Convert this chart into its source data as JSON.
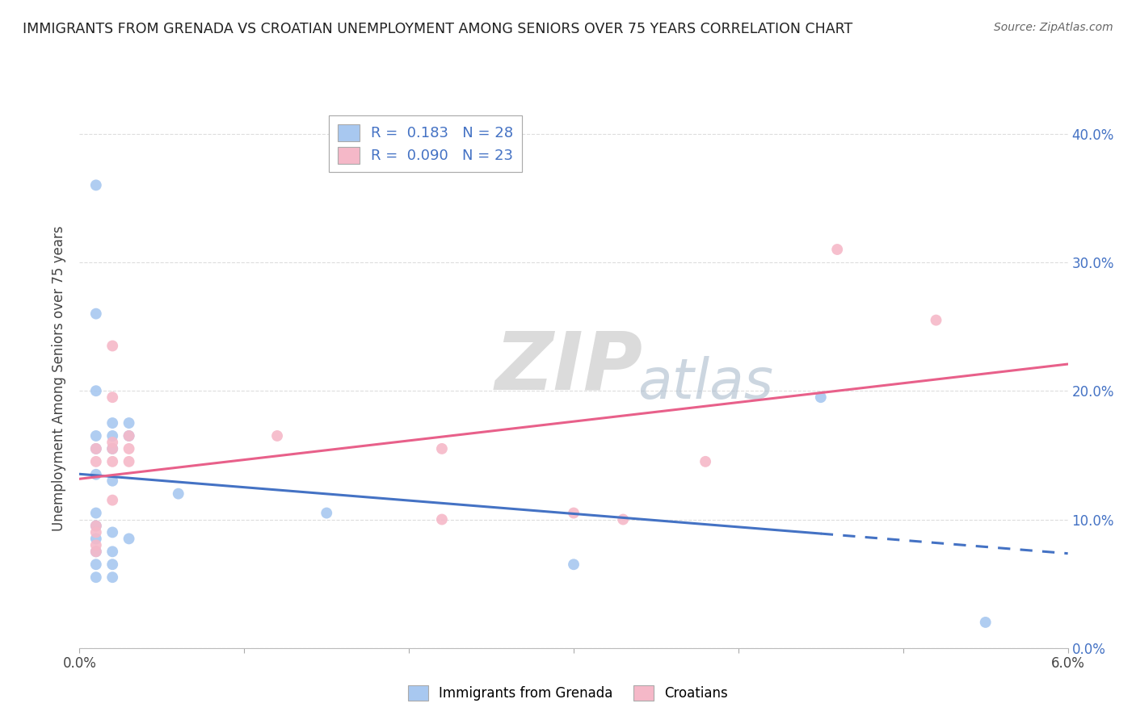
{
  "title": "IMMIGRANTS FROM GRENADA VS CROATIAN UNEMPLOYMENT AMONG SENIORS OVER 75 YEARS CORRELATION CHART",
  "source": "Source: ZipAtlas.com",
  "ylabel": "Unemployment Among Seniors over 75 years",
  "legend1_label": "Immigrants from Grenada",
  "legend2_label": "Croatians",
  "R1": "0.183",
  "N1": "28",
  "R2": "0.090",
  "N2": "23",
  "blue_color": "#A8C8F0",
  "pink_color": "#F5B8C8",
  "blue_line_color": "#4472C4",
  "pink_line_color": "#E8608A",
  "blue_scatter": [
    [
      0.001,
      0.36
    ],
    [
      0.001,
      0.26
    ],
    [
      0.001,
      0.2
    ],
    [
      0.001,
      0.165
    ],
    [
      0.001,
      0.155
    ],
    [
      0.001,
      0.135
    ],
    [
      0.001,
      0.105
    ],
    [
      0.001,
      0.095
    ],
    [
      0.001,
      0.085
    ],
    [
      0.001,
      0.075
    ],
    [
      0.001,
      0.065
    ],
    [
      0.001,
      0.055
    ],
    [
      0.002,
      0.175
    ],
    [
      0.002,
      0.165
    ],
    [
      0.002,
      0.155
    ],
    [
      0.002,
      0.13
    ],
    [
      0.002,
      0.09
    ],
    [
      0.002,
      0.075
    ],
    [
      0.002,
      0.065
    ],
    [
      0.002,
      0.055
    ],
    [
      0.003,
      0.175
    ],
    [
      0.003,
      0.165
    ],
    [
      0.003,
      0.085
    ],
    [
      0.006,
      0.12
    ],
    [
      0.015,
      0.105
    ],
    [
      0.03,
      0.065
    ],
    [
      0.045,
      0.195
    ],
    [
      0.055,
      0.02
    ]
  ],
  "pink_scatter": [
    [
      0.001,
      0.155
    ],
    [
      0.001,
      0.145
    ],
    [
      0.001,
      0.095
    ],
    [
      0.001,
      0.09
    ],
    [
      0.001,
      0.08
    ],
    [
      0.001,
      0.075
    ],
    [
      0.002,
      0.235
    ],
    [
      0.002,
      0.195
    ],
    [
      0.002,
      0.16
    ],
    [
      0.002,
      0.155
    ],
    [
      0.002,
      0.145
    ],
    [
      0.002,
      0.115
    ],
    [
      0.003,
      0.165
    ],
    [
      0.003,
      0.155
    ],
    [
      0.003,
      0.145
    ],
    [
      0.012,
      0.165
    ],
    [
      0.022,
      0.155
    ],
    [
      0.022,
      0.1
    ],
    [
      0.03,
      0.105
    ],
    [
      0.033,
      0.1
    ],
    [
      0.038,
      0.145
    ],
    [
      0.046,
      0.31
    ],
    [
      0.052,
      0.255
    ]
  ],
  "xlim": [
    0.0,
    0.06
  ],
  "ylim": [
    0.0,
    0.42
  ],
  "x_ticks": [
    0.0,
    0.01,
    0.02,
    0.03,
    0.04,
    0.05,
    0.06
  ],
  "y_ticks": [
    0.0,
    0.1,
    0.2,
    0.3,
    0.4
  ],
  "grid_color": "#DDDDDD",
  "background_color": "#FFFFFF",
  "watermark_zip": "ZIP",
  "watermark_atlas": "atlas",
  "marker_size": 100
}
